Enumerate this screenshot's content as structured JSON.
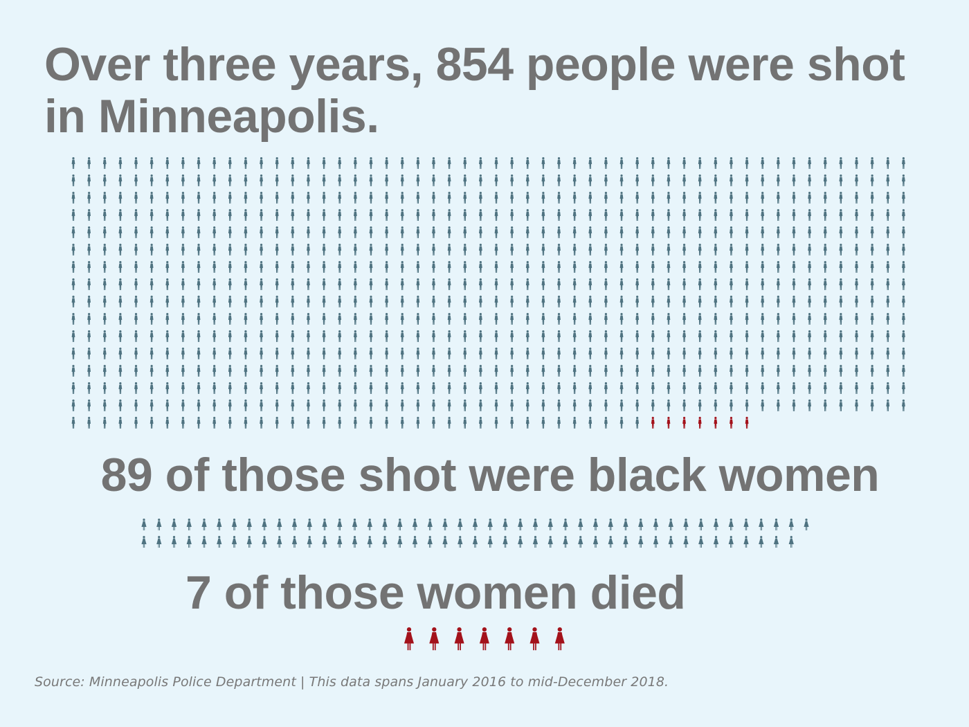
{
  "chart_data": {
    "type": "pictogram",
    "title": "Over three years, 854 people were shot in Minneapolis.",
    "sections": [
      {
        "label": "854 people shot",
        "total": 854,
        "highlighted": 7,
        "highlight_meaning": "black women who died"
      },
      {
        "label": "89 of those shot were black women",
        "total": 89,
        "highlighted": 0
      },
      {
        "label": "7 of those women died",
        "total": 7,
        "highlighted": 7
      }
    ],
    "subtitles": [
      "89 of those shot were black women",
      "7 of those women died"
    ],
    "colors": {
      "person": "#4f7381",
      "highlight": "#a3121b",
      "text": "#737373",
      "background": "#e8f5fb"
    }
  },
  "source": "Source: Minneapolis Police Department | This data spans January 2016 to mid-December 2018."
}
